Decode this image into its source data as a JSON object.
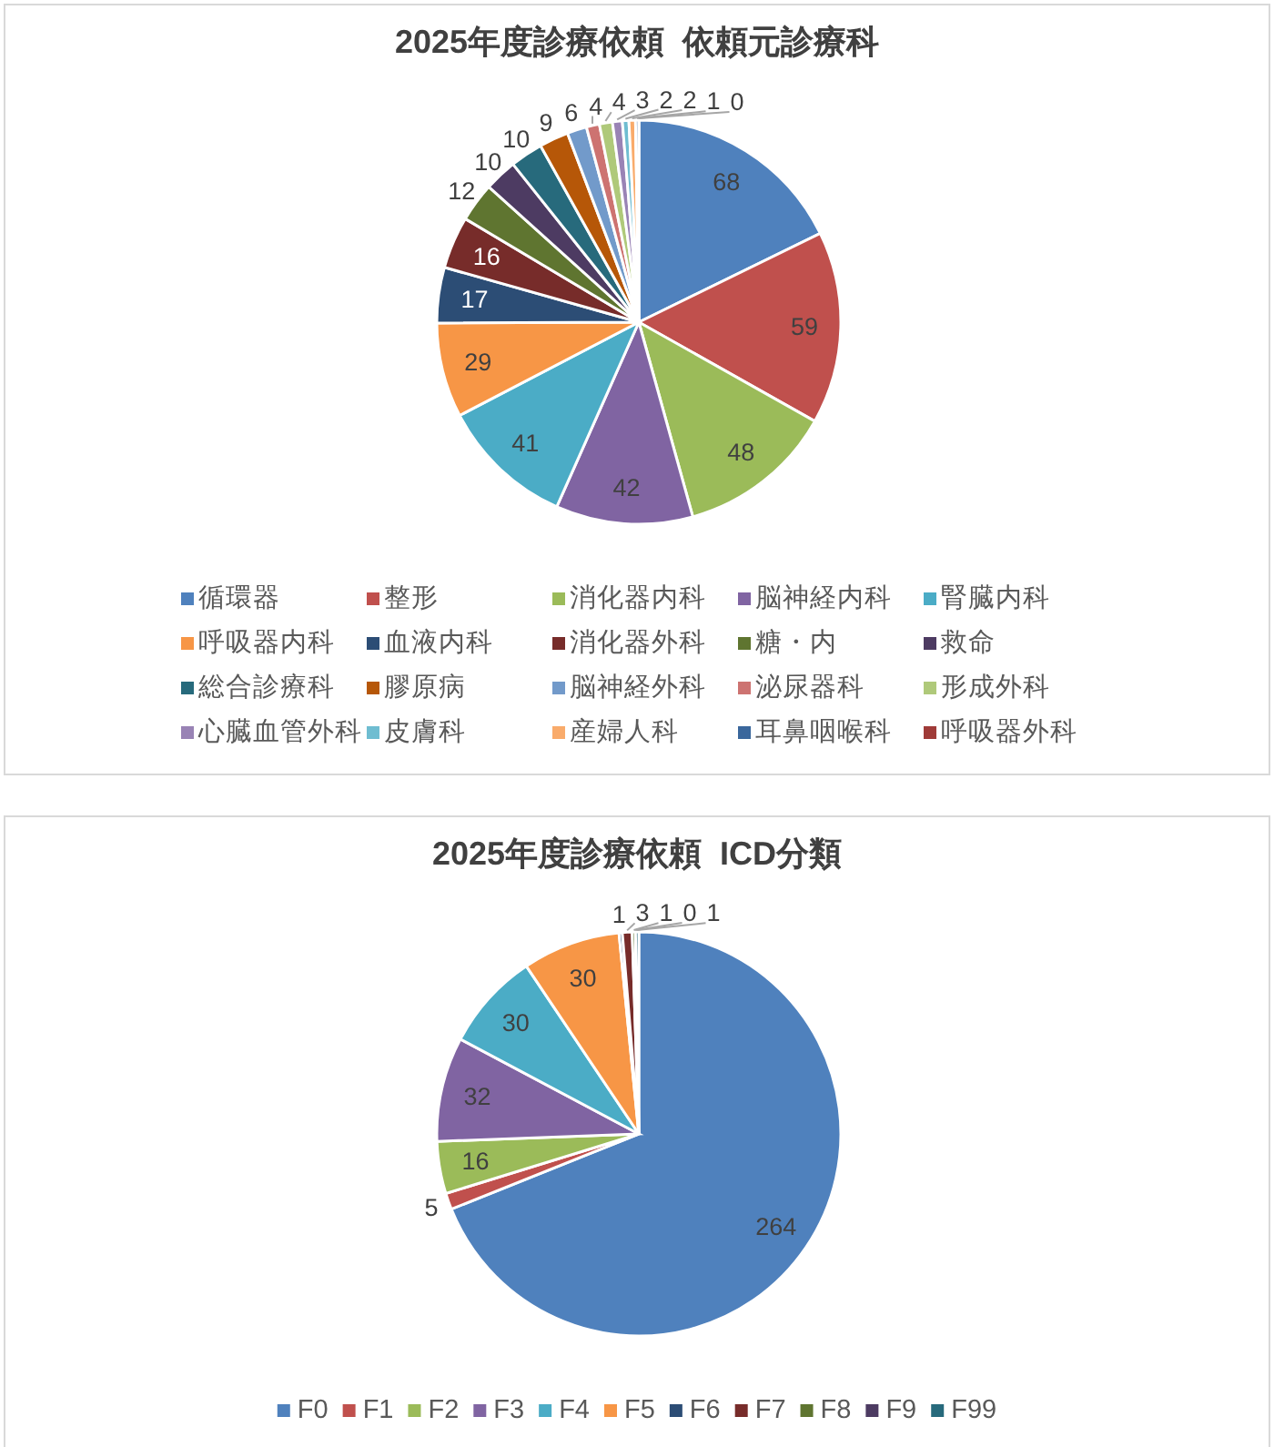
{
  "chart_data": [
    {
      "type": "pie",
      "title": "2025年度診療依頼  依頼元診療科",
      "categories": [
        "循環器",
        "整形",
        "消化器内科",
        "脳神経内科",
        "腎臓内科",
        "呼吸器内科",
        "血液内科",
        "消化器外科",
        "糖・内",
        "救命",
        "総合診療科",
        "膠原病",
        "脳神経外科",
        "泌尿器科",
        "形成外科",
        "心臓血管外科",
        "皮膚科",
        "産婦人科",
        "耳鼻咽喉科",
        "呼吸器外科"
      ],
      "values": [
        68,
        59,
        48,
        42,
        41,
        29,
        17,
        16,
        12,
        10,
        10,
        9,
        6,
        4,
        4,
        3,
        2,
        2,
        1,
        0
      ],
      "value_labels": [
        "68",
        "59",
        "48",
        "42",
        "41",
        "29",
        "17",
        "16",
        "12",
        "10",
        "10",
        "9",
        "6",
        "4",
        "4",
        "3",
        "2",
        "2",
        "1",
        "0"
      ],
      "colors": [
        "#4f81bd",
        "#c0504d",
        "#9bbb59",
        "#8064a2",
        "#4bacc6",
        "#f79646",
        "#2c4d75",
        "#772c2a",
        "#5f7530",
        "#4d3b62",
        "#276a7c",
        "#b65708",
        "#729aca",
        "#cd7371",
        "#afc97a",
        "#9983b5",
        "#6fbdd1",
        "#f9ab6b",
        "#3a679c",
        "#9f3b38"
      ],
      "data_labels": true,
      "legend": "bottom"
    },
    {
      "type": "pie",
      "title": "2025年度診療依頼  ICD分類",
      "categories": [
        "F0",
        "F1",
        "F2",
        "F3",
        "F4",
        "F5",
        "F6",
        "F7",
        "F8",
        "F9",
        "F99"
      ],
      "values": [
        264,
        5,
        16,
        32,
        30,
        30,
        1,
        3,
        1,
        0,
        1
      ],
      "value_labels": [
        "264",
        "5",
        "16",
        "32",
        "30",
        "30",
        "1",
        "3",
        "1",
        "0",
        "1"
      ],
      "colors": [
        "#4f81bd",
        "#c0504d",
        "#9bbb59",
        "#8064a2",
        "#4bacc6",
        "#f79646",
        "#2c4d75",
        "#772c2a",
        "#5f7530",
        "#4d3b62",
        "#276a7c"
      ],
      "data_labels": true,
      "legend": "bottom"
    }
  ]
}
